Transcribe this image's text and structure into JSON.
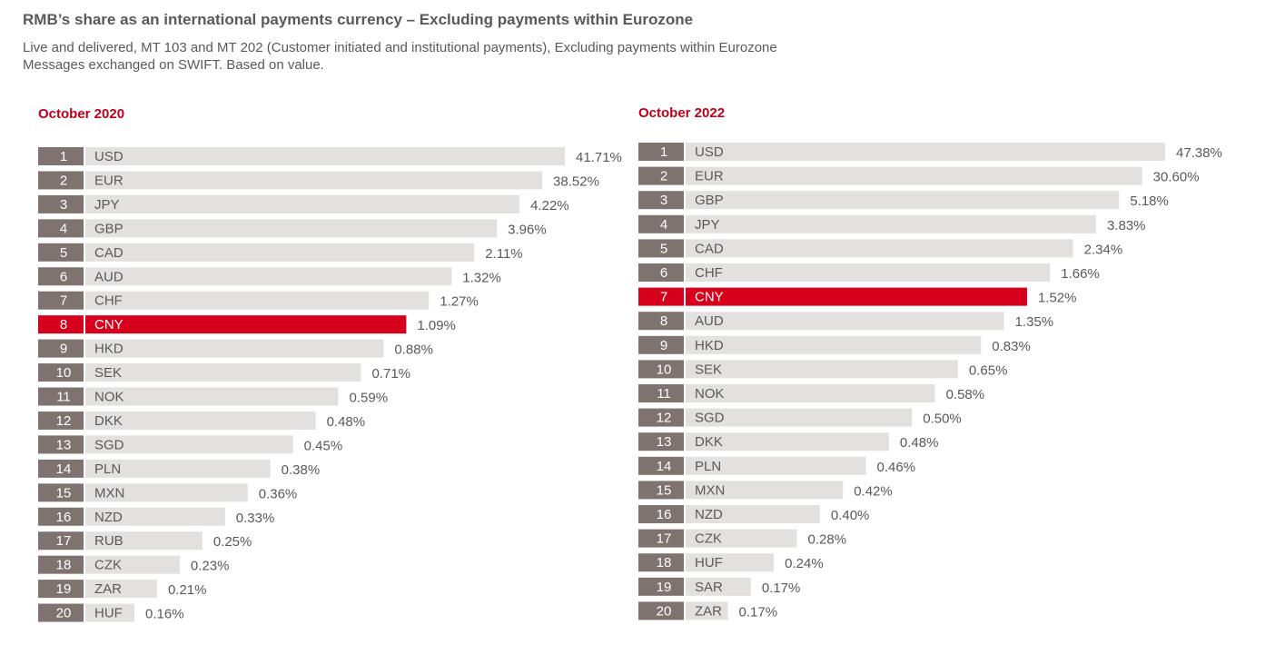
{
  "header": {
    "title": "RMB’s share as an international payments currency – Excluding payments within Eurozone",
    "subtitle_line1": "Live and delivered, MT 103 and MT 202 (Customer initiated and institutional payments), Excluding payments within Eurozone",
    "subtitle_line2": "Messages exchanged on SWIFT. Based on value."
  },
  "colors": {
    "rank_box": "#7f7370",
    "bar": "#e3e1e0",
    "highlight": "#d6001c",
    "text": "#595959",
    "accent_title": "#c00018"
  },
  "chart_data": [
    {
      "type": "bar",
      "orientation": "horizontal",
      "title": "October 2020",
      "highlight": "CNY",
      "ranks": [
        1,
        2,
        3,
        4,
        5,
        6,
        7,
        8,
        9,
        10,
        11,
        12,
        13,
        14,
        15,
        16,
        17,
        18,
        19,
        20
      ],
      "categories": [
        "USD",
        "EUR",
        "JPY",
        "GBP",
        "CAD",
        "AUD",
        "CHF",
        "CNY",
        "HKD",
        "SEK",
        "NOK",
        "DKK",
        "SGD",
        "PLN",
        "MXN",
        "NZD",
        "RUB",
        "CZK",
        "ZAR",
        "HUF"
      ],
      "values": [
        41.71,
        38.52,
        4.22,
        3.96,
        2.11,
        1.32,
        1.27,
        1.09,
        0.88,
        0.71,
        0.59,
        0.48,
        0.45,
        0.38,
        0.36,
        0.33,
        0.25,
        0.23,
        0.21,
        0.16
      ],
      "value_labels": [
        "41.71%",
        "38.52%",
        "4.22%",
        "3.96%",
        "2.11%",
        "1.32%",
        "1.27%",
        "1.09%",
        "0.88%",
        "0.71%",
        "0.59%",
        "0.48%",
        "0.45%",
        "0.38%",
        "0.36%",
        "0.33%",
        "0.25%",
        "0.23%",
        "0.21%",
        "0.16%"
      ]
    },
    {
      "type": "bar",
      "orientation": "horizontal",
      "title": "October 2022",
      "highlight": "CNY",
      "ranks": [
        1,
        2,
        3,
        4,
        5,
        6,
        7,
        8,
        9,
        10,
        11,
        12,
        13,
        14,
        15,
        16,
        17,
        18,
        19,
        20
      ],
      "categories": [
        "USD",
        "EUR",
        "GBP",
        "JPY",
        "CAD",
        "CHF",
        "CNY",
        "AUD",
        "HKD",
        "SEK",
        "NOK",
        "SGD",
        "DKK",
        "PLN",
        "MXN",
        "NZD",
        "CZK",
        "HUF",
        "SAR",
        "ZAR"
      ],
      "values": [
        47.38,
        30.6,
        5.18,
        3.83,
        2.34,
        1.66,
        1.52,
        1.35,
        0.83,
        0.65,
        0.58,
        0.5,
        0.48,
        0.46,
        0.42,
        0.4,
        0.28,
        0.24,
        0.17,
        0.17
      ],
      "value_labels": [
        "47.38%",
        "30.60%",
        "5.18%",
        "3.83%",
        "2.34%",
        "1.66%",
        "1.52%",
        "1.35%",
        "0.83%",
        "0.65%",
        "0.58%",
        "0.50%",
        "0.48%",
        "0.46%",
        "0.42%",
        "0.40%",
        "0.28%",
        "0.24%",
        "0.17%",
        "0.17%"
      ]
    }
  ]
}
